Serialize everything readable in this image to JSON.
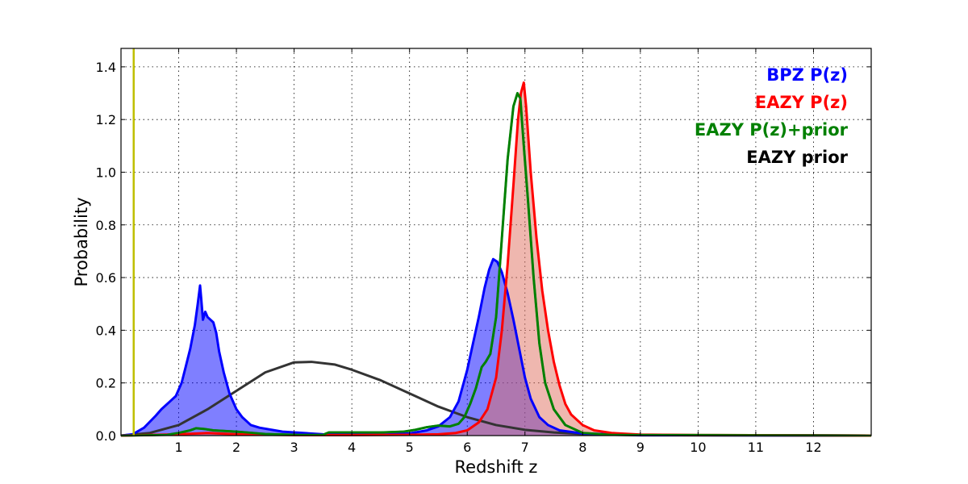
{
  "chart_data": {
    "type": "area",
    "xlabel": "Redshift z",
    "ylabel": "Probability",
    "xlim": [
      0,
      13
    ],
    "ylim": [
      0,
      1.47
    ],
    "xticks": [
      "1",
      "2",
      "3",
      "4",
      "5",
      "6",
      "7",
      "8",
      "9",
      "10",
      "11",
      "12"
    ],
    "yticks": [
      "0.0",
      "0.2",
      "0.4",
      "0.6",
      "0.8",
      "1.0",
      "1.2",
      "1.4"
    ],
    "grid": true,
    "legend_position": "top-right",
    "vline": {
      "x": 0.22,
      "color": "#bfbf00"
    },
    "series": [
      {
        "name": "BPZ P(z)",
        "color": "#0000ff",
        "fill": "#0000ff",
        "fill_opacity": 0.5,
        "points": [
          [
            0,
            0
          ],
          [
            0.2,
            0.005
          ],
          [
            0.4,
            0.03
          ],
          [
            0.6,
            0.075
          ],
          [
            0.7,
            0.1
          ],
          [
            0.85,
            0.13
          ],
          [
            0.95,
            0.15
          ],
          [
            1.05,
            0.2
          ],
          [
            1.12,
            0.26
          ],
          [
            1.2,
            0.33
          ],
          [
            1.28,
            0.42
          ],
          [
            1.33,
            0.5
          ],
          [
            1.37,
            0.57
          ],
          [
            1.39,
            0.52
          ],
          [
            1.42,
            0.44
          ],
          [
            1.46,
            0.47
          ],
          [
            1.5,
            0.45
          ],
          [
            1.55,
            0.44
          ],
          [
            1.6,
            0.43
          ],
          [
            1.65,
            0.39
          ],
          [
            1.7,
            0.32
          ],
          [
            1.78,
            0.24
          ],
          [
            1.88,
            0.16
          ],
          [
            2.0,
            0.1
          ],
          [
            2.1,
            0.07
          ],
          [
            2.25,
            0.04
          ],
          [
            2.4,
            0.03
          ],
          [
            2.8,
            0.015
          ],
          [
            3.5,
            0.005
          ],
          [
            4.5,
            0.003
          ],
          [
            5.0,
            0.008
          ],
          [
            5.3,
            0.02
          ],
          [
            5.5,
            0.035
          ],
          [
            5.7,
            0.07
          ],
          [
            5.85,
            0.13
          ],
          [
            6.0,
            0.25
          ],
          [
            6.1,
            0.35
          ],
          [
            6.2,
            0.45
          ],
          [
            6.3,
            0.56
          ],
          [
            6.38,
            0.63
          ],
          [
            6.45,
            0.67
          ],
          [
            6.52,
            0.66
          ],
          [
            6.6,
            0.62
          ],
          [
            6.7,
            0.54
          ],
          [
            6.8,
            0.44
          ],
          [
            6.9,
            0.33
          ],
          [
            7.0,
            0.22
          ],
          [
            7.1,
            0.14
          ],
          [
            7.25,
            0.07
          ],
          [
            7.4,
            0.04
          ],
          [
            7.6,
            0.02
          ],
          [
            8.0,
            0.008
          ],
          [
            9.0,
            0.002
          ],
          [
            13,
            0.0
          ]
        ]
      },
      {
        "name": "EAZY P(z)",
        "color": "#ff0000",
        "fill": "#e07060",
        "fill_opacity": 0.5,
        "points": [
          [
            0,
            0
          ],
          [
            1,
            0.005
          ],
          [
            1.5,
            0.01
          ],
          [
            2,
            0.005
          ],
          [
            3,
            0.002
          ],
          [
            4,
            0.002
          ],
          [
            5,
            0.003
          ],
          [
            5.5,
            0.005
          ],
          [
            5.8,
            0.01
          ],
          [
            6.0,
            0.02
          ],
          [
            6.2,
            0.05
          ],
          [
            6.35,
            0.1
          ],
          [
            6.5,
            0.22
          ],
          [
            6.6,
            0.4
          ],
          [
            6.7,
            0.65
          ],
          [
            6.8,
            0.95
          ],
          [
            6.88,
            1.2
          ],
          [
            6.93,
            1.3
          ],
          [
            6.98,
            1.34
          ],
          [
            7.02,
            1.25
          ],
          [
            7.1,
            1.0
          ],
          [
            7.2,
            0.75
          ],
          [
            7.3,
            0.55
          ],
          [
            7.4,
            0.4
          ],
          [
            7.5,
            0.28
          ],
          [
            7.6,
            0.19
          ],
          [
            7.7,
            0.12
          ],
          [
            7.8,
            0.08
          ],
          [
            8.0,
            0.04
          ],
          [
            8.2,
            0.02
          ],
          [
            8.5,
            0.01
          ],
          [
            9,
            0.004
          ],
          [
            10,
            0.002
          ],
          [
            13,
            0.0
          ]
        ]
      }
    ],
    "lines": [
      {
        "name": "EAZY P(z)+prior",
        "color": "#008000",
        "points": [
          [
            0,
            0
          ],
          [
            0.8,
            0.003
          ],
          [
            1.0,
            0.01
          ],
          [
            1.2,
            0.02
          ],
          [
            1.3,
            0.028
          ],
          [
            1.45,
            0.025
          ],
          [
            1.6,
            0.02
          ],
          [
            2.0,
            0.015
          ],
          [
            2.5,
            0.006
          ],
          [
            3.0,
            0.003
          ],
          [
            3.5,
            0.003
          ],
          [
            3.6,
            0.012
          ],
          [
            4.0,
            0.012
          ],
          [
            4.5,
            0.012
          ],
          [
            4.9,
            0.015
          ],
          [
            5.1,
            0.022
          ],
          [
            5.3,
            0.032
          ],
          [
            5.5,
            0.038
          ],
          [
            5.7,
            0.035
          ],
          [
            5.85,
            0.045
          ],
          [
            5.95,
            0.07
          ],
          [
            6.05,
            0.12
          ],
          [
            6.15,
            0.18
          ],
          [
            6.25,
            0.26
          ],
          [
            6.32,
            0.28
          ],
          [
            6.4,
            0.31
          ],
          [
            6.5,
            0.45
          ],
          [
            6.6,
            0.75
          ],
          [
            6.7,
            1.05
          ],
          [
            6.8,
            1.25
          ],
          [
            6.87,
            1.3
          ],
          [
            6.92,
            1.28
          ],
          [
            6.98,
            1.1
          ],
          [
            7.05,
            0.9
          ],
          [
            7.15,
            0.6
          ],
          [
            7.25,
            0.35
          ],
          [
            7.35,
            0.2
          ],
          [
            7.5,
            0.1
          ],
          [
            7.7,
            0.04
          ],
          [
            8.0,
            0.01
          ],
          [
            8.5,
            0.003
          ],
          [
            13,
            0.0
          ]
        ]
      },
      {
        "name": "EAZY prior",
        "color": "#333333",
        "points": [
          [
            0,
            0
          ],
          [
            0.5,
            0.01
          ],
          [
            1.0,
            0.04
          ],
          [
            1.5,
            0.1
          ],
          [
            2.0,
            0.17
          ],
          [
            2.5,
            0.24
          ],
          [
            3.0,
            0.278
          ],
          [
            3.3,
            0.28
          ],
          [
            3.7,
            0.27
          ],
          [
            4.0,
            0.25
          ],
          [
            4.5,
            0.21
          ],
          [
            5.0,
            0.16
          ],
          [
            5.5,
            0.11
          ],
          [
            6.0,
            0.07
          ],
          [
            6.5,
            0.04
          ],
          [
            7.0,
            0.022
          ],
          [
            7.5,
            0.012
          ],
          [
            8.0,
            0.006
          ],
          [
            9.0,
            0.001
          ],
          [
            13,
            0.0
          ]
        ]
      }
    ],
    "legend": [
      {
        "label": "BPZ P(z)",
        "color": "#0000ff"
      },
      {
        "label": "EAZY P(z)",
        "color": "#ff0000"
      },
      {
        "label": "EAZY P(z)+prior",
        "color": "#008000"
      },
      {
        "label": "EAZY prior",
        "color": "#000000"
      }
    ]
  }
}
